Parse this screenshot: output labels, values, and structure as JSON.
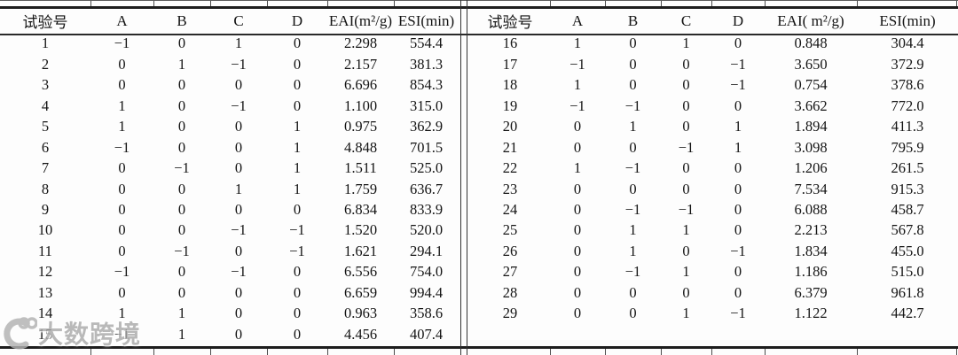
{
  "table": {
    "panels": [
      {
        "headers": [
          "试验号",
          "A",
          "B",
          "C",
          "D",
          "EAI(m²/g)",
          "ESI(min)"
        ],
        "rows": [
          [
            "1",
            "−1",
            "0",
            "1",
            "0",
            "2.298",
            "554.4"
          ],
          [
            "2",
            "0",
            "1",
            "−1",
            "0",
            "2.157",
            "381.3"
          ],
          [
            "3",
            "0",
            "0",
            "0",
            "0",
            "6.696",
            "854.3"
          ],
          [
            "4",
            "1",
            "0",
            "−1",
            "0",
            "1.100",
            "315.0"
          ],
          [
            "5",
            "1",
            "0",
            "0",
            "1",
            "0.975",
            "362.9"
          ],
          [
            "6",
            "−1",
            "0",
            "0",
            "1",
            "4.848",
            "701.5"
          ],
          [
            "7",
            "0",
            "−1",
            "0",
            "1",
            "1.511",
            "525.0"
          ],
          [
            "8",
            "0",
            "0",
            "1",
            "1",
            "1.759",
            "636.7"
          ],
          [
            "9",
            "0",
            "0",
            "0",
            "0",
            "6.834",
            "833.9"
          ],
          [
            "10",
            "0",
            "0",
            "−1",
            "−1",
            "1.520",
            "520.0"
          ],
          [
            "11",
            "0",
            "−1",
            "0",
            "−1",
            "1.621",
            "294.1"
          ],
          [
            "12",
            "−1",
            "0",
            "−1",
            "0",
            "6.556",
            "754.0"
          ],
          [
            "13",
            "0",
            "0",
            "0",
            "0",
            "6.659",
            "994.4"
          ],
          [
            "14",
            "1",
            "1",
            "0",
            "0",
            "0.963",
            "358.6"
          ],
          [
            "15",
            "−1",
            "1",
            "0",
            "0",
            "4.456",
            "407.4"
          ]
        ]
      },
      {
        "headers": [
          "试验号",
          "A",
          "B",
          "C",
          "D",
          "EAI( m²/g)",
          "ESI(min)"
        ],
        "rows": [
          [
            "16",
            "1",
            "0",
            "1",
            "0",
            "0.848",
            "304.4"
          ],
          [
            "17",
            "−1",
            "0",
            "0",
            "−1",
            "3.650",
            "372.9"
          ],
          [
            "18",
            "1",
            "0",
            "0",
            "−1",
            "0.754",
            "378.6"
          ],
          [
            "19",
            "−1",
            "−1",
            "0",
            "0",
            "3.662",
            "772.0"
          ],
          [
            "20",
            "0",
            "1",
            "0",
            "1",
            "1.894",
            "411.3"
          ],
          [
            "21",
            "0",
            "0",
            "−1",
            "1",
            "3.098",
            "795.9"
          ],
          [
            "22",
            "1",
            "−1",
            "0",
            "0",
            "1.206",
            "261.5"
          ],
          [
            "23",
            "0",
            "0",
            "0",
            "0",
            "7.534",
            "915.3"
          ],
          [
            "24",
            "0",
            "−1",
            "−1",
            "0",
            "6.088",
            "458.7"
          ],
          [
            "25",
            "0",
            "1",
            "1",
            "0",
            "2.213",
            "567.8"
          ],
          [
            "26",
            "0",
            "1",
            "0",
            "−1",
            "1.834",
            "455.0"
          ],
          [
            "27",
            "0",
            "−1",
            "1",
            "0",
            "1.186",
            "515.0"
          ],
          [
            "28",
            "0",
            "0",
            "0",
            "0",
            "6.379",
            "961.8"
          ],
          [
            "29",
            "0",
            "0",
            "1",
            "−1",
            "1.122",
            "442.7"
          ]
        ]
      }
    ]
  },
  "watermark": {
    "text": "大数跨境"
  }
}
